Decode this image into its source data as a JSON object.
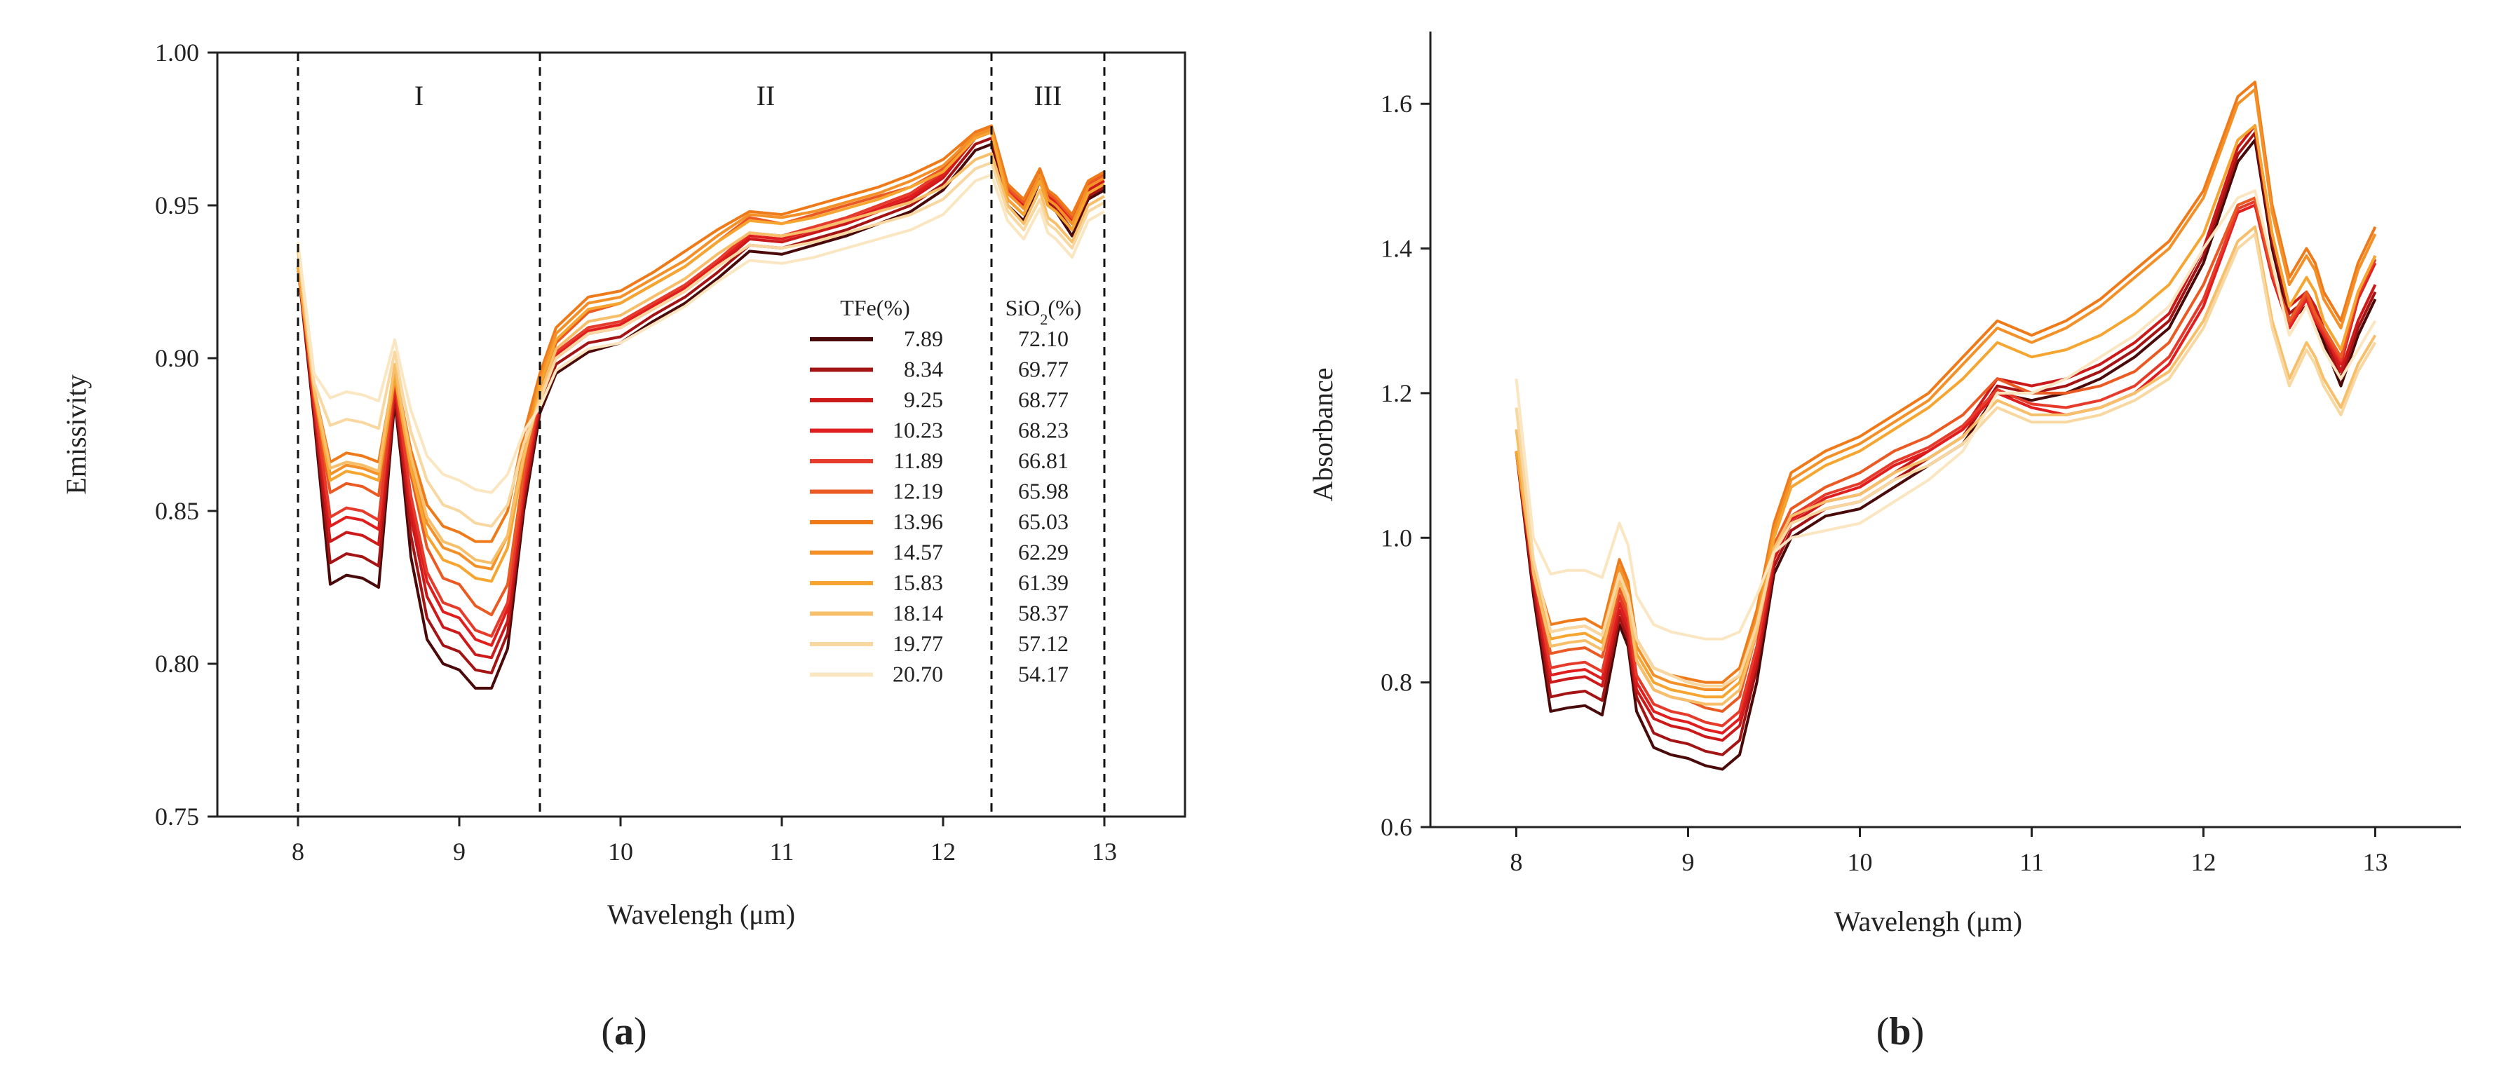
{
  "chart_data": [
    {
      "type": "line",
      "panel": "a",
      "xlabel": "Wavelengh (μm)",
      "ylabel": "Emissivity",
      "xlim": [
        7.5,
        13.5
      ],
      "ylim": [
        0.75,
        1.0
      ],
      "xticks": [
        8,
        9,
        10,
        11,
        12,
        13
      ],
      "yticks": [
        "0.75",
        "0.80",
        "0.85",
        "0.90",
        "0.95",
        "1.00"
      ],
      "grid": false,
      "regions": [
        {
          "label": "I",
          "from": 8.0,
          "to": 9.5
        },
        {
          "label": "II",
          "from": 9.5,
          "to": 12.3
        },
        {
          "label": "III",
          "from": 12.3,
          "to": 13.0
        }
      ],
      "x": [
        8.0,
        8.1,
        8.2,
        8.3,
        8.4,
        8.5,
        8.6,
        8.65,
        8.7,
        8.8,
        8.9,
        9.0,
        9.1,
        9.2,
        9.3,
        9.4,
        9.5,
        9.6,
        9.8,
        10.0,
        10.2,
        10.4,
        10.6,
        10.8,
        11.0,
        11.2,
        11.4,
        11.6,
        11.8,
        12.0,
        12.2,
        12.3,
        12.4,
        12.5,
        12.6,
        12.65,
        12.7,
        12.8,
        12.9,
        13.0
      ]
    },
    {
      "type": "line",
      "panel": "b",
      "xlabel": "Wavelengh (μm)",
      "ylabel": "Absorbance",
      "xlim": [
        7.5,
        13.5
      ],
      "ylim": [
        0.6,
        1.7
      ],
      "xticks": [
        8,
        9,
        10,
        11,
        12,
        13
      ],
      "yticks": [
        "0.6",
        "0.8",
        "1.0",
        "1.2",
        "1.4",
        "1.6"
      ],
      "grid": false,
      "x": [
        8.0,
        8.1,
        8.2,
        8.3,
        8.4,
        8.5,
        8.6,
        8.65,
        8.7,
        8.8,
        8.9,
        9.0,
        9.1,
        9.2,
        9.3,
        9.4,
        9.5,
        9.6,
        9.8,
        10.0,
        10.2,
        10.4,
        10.6,
        10.8,
        11.0,
        11.2,
        11.4,
        11.6,
        11.8,
        12.0,
        12.2,
        12.3,
        12.4,
        12.5,
        12.6,
        12.65,
        12.7,
        12.8,
        12.9,
        13.0
      ]
    }
  ],
  "legend": {
    "header_tfe": "TFe(%)",
    "header_sio2": "SiO2(%)",
    "entries": [
      {
        "tfe": "7.89",
        "sio2": "72.10",
        "color": "#4a0a0a"
      },
      {
        "tfe": "8.34",
        "sio2": "69.77",
        "color": "#a51414"
      },
      {
        "tfe": "9.25",
        "sio2": "68.77",
        "color": "#cc1a1a"
      },
      {
        "tfe": "10.23",
        "sio2": "68.23",
        "color": "#e01e1e"
      },
      {
        "tfe": "11.89",
        "sio2": "66.81",
        "color": "#e63b2a"
      },
      {
        "tfe": "12.19",
        "sio2": "65.98",
        "color": "#ea5a22"
      },
      {
        "tfe": "13.96",
        "sio2": "65.03",
        "color": "#ee7a1a"
      },
      {
        "tfe": "14.57",
        "sio2": "62.29",
        "color": "#f39028"
      },
      {
        "tfe": "15.83",
        "sio2": "61.39",
        "color": "#f5a530"
      },
      {
        "tfe": "18.14",
        "sio2": "58.37",
        "color": "#f7bf6a"
      },
      {
        "tfe": "19.77",
        "sio2": "57.12",
        "color": "#f8d7a0"
      },
      {
        "tfe": "20.70",
        "sio2": "54.17",
        "color": "#fbe6c2"
      }
    ]
  },
  "series_a": [
    [
      0.93,
      0.88,
      0.826,
      0.829,
      0.828,
      0.825,
      0.886,
      0.862,
      0.835,
      0.808,
      0.8,
      0.798,
      0.792,
      0.792,
      0.805,
      0.85,
      0.882,
      0.895,
      0.902,
      0.905,
      0.912,
      0.918,
      0.926,
      0.935,
      0.934,
      0.937,
      0.94,
      0.944,
      0.948,
      0.955,
      0.968,
      0.97,
      0.95,
      0.945,
      0.958,
      0.95,
      0.948,
      0.94,
      0.952,
      0.955
    ],
    [
      0.93,
      0.882,
      0.833,
      0.836,
      0.835,
      0.832,
      0.888,
      0.866,
      0.842,
      0.815,
      0.806,
      0.804,
      0.798,
      0.797,
      0.81,
      0.853,
      0.884,
      0.898,
      0.905,
      0.907,
      0.914,
      0.92,
      0.928,
      0.937,
      0.936,
      0.939,
      0.942,
      0.946,
      0.95,
      0.957,
      0.97,
      0.972,
      0.952,
      0.947,
      0.959,
      0.951,
      0.949,
      0.942,
      0.953,
      0.956
    ],
    [
      0.93,
      0.884,
      0.84,
      0.843,
      0.842,
      0.839,
      0.89,
      0.869,
      0.848,
      0.822,
      0.812,
      0.81,
      0.803,
      0.802,
      0.814,
      0.856,
      0.886,
      0.9,
      0.908,
      0.91,
      0.916,
      0.922,
      0.93,
      0.939,
      0.938,
      0.941,
      0.944,
      0.948,
      0.952,
      0.959,
      0.972,
      0.974,
      0.954,
      0.949,
      0.96,
      0.952,
      0.95,
      0.944,
      0.955,
      0.958
    ],
    [
      0.93,
      0.885,
      0.845,
      0.848,
      0.847,
      0.844,
      0.892,
      0.872,
      0.852,
      0.827,
      0.817,
      0.815,
      0.808,
      0.806,
      0.818,
      0.858,
      0.887,
      0.901,
      0.909,
      0.911,
      0.917,
      0.923,
      0.931,
      0.94,
      0.939,
      0.942,
      0.945,
      0.949,
      0.953,
      0.96,
      0.973,
      0.975,
      0.955,
      0.95,
      0.961,
      0.953,
      0.951,
      0.945,
      0.956,
      0.959
    ],
    [
      0.93,
      0.886,
      0.848,
      0.851,
      0.85,
      0.847,
      0.893,
      0.874,
      0.855,
      0.83,
      0.82,
      0.818,
      0.811,
      0.809,
      0.82,
      0.86,
      0.888,
      0.902,
      0.91,
      0.912,
      0.918,
      0.924,
      0.932,
      0.941,
      0.94,
      0.943,
      0.946,
      0.95,
      0.954,
      0.961,
      0.973,
      0.975,
      0.955,
      0.951,
      0.961,
      0.954,
      0.952,
      0.946,
      0.957,
      0.96
    ],
    [
      0.93,
      0.888,
      0.856,
      0.859,
      0.858,
      0.855,
      0.894,
      0.878,
      0.862,
      0.838,
      0.828,
      0.826,
      0.819,
      0.816,
      0.826,
      0.863,
      0.89,
      0.905,
      0.915,
      0.918,
      0.924,
      0.93,
      0.938,
      0.946,
      0.944,
      0.947,
      0.95,
      0.953,
      0.956,
      0.962,
      0.974,
      0.976,
      0.956,
      0.951,
      0.962,
      0.954,
      0.952,
      0.946,
      0.957,
      0.96
    ],
    [
      0.93,
      0.89,
      0.866,
      0.869,
      0.868,
      0.866,
      0.896,
      0.883,
      0.87,
      0.852,
      0.845,
      0.843,
      0.84,
      0.84,
      0.85,
      0.875,
      0.895,
      0.91,
      0.92,
      0.922,
      0.928,
      0.935,
      0.942,
      0.948,
      0.947,
      0.95,
      0.953,
      0.956,
      0.96,
      0.965,
      0.974,
      0.976,
      0.957,
      0.952,
      0.962,
      0.955,
      0.953,
      0.947,
      0.958,
      0.961
    ],
    [
      0.93,
      0.889,
      0.862,
      0.865,
      0.864,
      0.862,
      0.895,
      0.88,
      0.866,
      0.846,
      0.838,
      0.836,
      0.832,
      0.831,
      0.842,
      0.87,
      0.893,
      0.908,
      0.918,
      0.92,
      0.926,
      0.932,
      0.94,
      0.947,
      0.946,
      0.948,
      0.951,
      0.954,
      0.958,
      0.963,
      0.973,
      0.975,
      0.954,
      0.949,
      0.96,
      0.952,
      0.95,
      0.944,
      0.956,
      0.959
    ],
    [
      0.93,
      0.889,
      0.86,
      0.863,
      0.862,
      0.86,
      0.894,
      0.879,
      0.864,
      0.842,
      0.834,
      0.832,
      0.828,
      0.827,
      0.838,
      0.867,
      0.891,
      0.906,
      0.916,
      0.918,
      0.924,
      0.93,
      0.938,
      0.945,
      0.944,
      0.946,
      0.949,
      0.952,
      0.956,
      0.961,
      0.972,
      0.974,
      0.952,
      0.947,
      0.958,
      0.95,
      0.948,
      0.942,
      0.954,
      0.957
    ],
    [
      0.935,
      0.89,
      0.864,
      0.866,
      0.865,
      0.863,
      0.898,
      0.882,
      0.868,
      0.848,
      0.84,
      0.838,
      0.834,
      0.833,
      0.842,
      0.868,
      0.888,
      0.903,
      0.912,
      0.914,
      0.92,
      0.926,
      0.934,
      0.941,
      0.94,
      0.942,
      0.945,
      0.948,
      0.951,
      0.956,
      0.965,
      0.967,
      0.95,
      0.944,
      0.955,
      0.946,
      0.944,
      0.938,
      0.95,
      0.953
    ],
    [
      0.937,
      0.892,
      0.878,
      0.88,
      0.879,
      0.877,
      0.902,
      0.888,
      0.876,
      0.86,
      0.852,
      0.85,
      0.846,
      0.845,
      0.852,
      0.872,
      0.886,
      0.9,
      0.908,
      0.91,
      0.916,
      0.922,
      0.93,
      0.937,
      0.936,
      0.938,
      0.941,
      0.944,
      0.947,
      0.952,
      0.962,
      0.964,
      0.948,
      0.942,
      0.952,
      0.944,
      0.942,
      0.936,
      0.948,
      0.951
    ],
    [
      0.938,
      0.895,
      0.887,
      0.889,
      0.888,
      0.886,
      0.906,
      0.894,
      0.883,
      0.868,
      0.862,
      0.86,
      0.857,
      0.856,
      0.862,
      0.876,
      0.884,
      0.896,
      0.903,
      0.905,
      0.911,
      0.917,
      0.925,
      0.932,
      0.931,
      0.933,
      0.936,
      0.939,
      0.942,
      0.947,
      0.958,
      0.96,
      0.945,
      0.939,
      0.949,
      0.941,
      0.939,
      0.933,
      0.945,
      0.948
    ]
  ],
  "series_b": [
    [
      1.12,
      0.92,
      0.76,
      0.765,
      0.768,
      0.755,
      0.88,
      0.85,
      0.76,
      0.71,
      0.7,
      0.695,
      0.685,
      0.68,
      0.7,
      0.8,
      0.95,
      1.0,
      1.03,
      1.04,
      1.07,
      1.1,
      1.13,
      1.2,
      1.19,
      1.2,
      1.22,
      1.25,
      1.29,
      1.38,
      1.52,
      1.55,
      1.4,
      1.3,
      1.32,
      1.3,
      1.27,
      1.21,
      1.28,
      1.33
    ],
    [
      1.12,
      0.93,
      0.78,
      0.785,
      0.788,
      0.775,
      0.89,
      0.86,
      0.78,
      0.73,
      0.72,
      0.715,
      0.705,
      0.7,
      0.72,
      0.82,
      0.96,
      1.01,
      1.04,
      1.05,
      1.08,
      1.11,
      1.14,
      1.21,
      1.2,
      1.21,
      1.23,
      1.26,
      1.3,
      1.39,
      1.53,
      1.56,
      1.41,
      1.31,
      1.33,
      1.31,
      1.28,
      1.22,
      1.29,
      1.34
    ],
    [
      1.12,
      0.94,
      0.8,
      0.805,
      0.808,
      0.795,
      0.9,
      0.87,
      0.79,
      0.75,
      0.74,
      0.735,
      0.725,
      0.72,
      0.74,
      0.83,
      0.97,
      1.02,
      1.05,
      1.06,
      1.09,
      1.12,
      1.15,
      1.22,
      1.21,
      1.22,
      1.24,
      1.27,
      1.31,
      1.4,
      1.54,
      1.57,
      1.42,
      1.32,
      1.34,
      1.32,
      1.29,
      1.23,
      1.3,
      1.35
    ],
    [
      1.12,
      0.945,
      0.81,
      0.815,
      0.818,
      0.805,
      0.91,
      0.88,
      0.8,
      0.76,
      0.75,
      0.745,
      0.735,
      0.73,
      0.75,
      0.84,
      0.975,
      1.025,
      1.055,
      1.07,
      1.1,
      1.12,
      1.15,
      1.2,
      1.18,
      1.17,
      1.18,
      1.2,
      1.24,
      1.32,
      1.45,
      1.46,
      1.36,
      1.29,
      1.33,
      1.3,
      1.28,
      1.24,
      1.33,
      1.38
    ],
    [
      1.12,
      0.95,
      0.82,
      0.825,
      0.828,
      0.815,
      0.92,
      0.89,
      0.81,
      0.77,
      0.76,
      0.755,
      0.745,
      0.74,
      0.76,
      0.85,
      0.98,
      1.03,
      1.06,
      1.075,
      1.105,
      1.125,
      1.155,
      1.205,
      1.185,
      1.18,
      1.19,
      1.21,
      1.25,
      1.33,
      1.455,
      1.465,
      1.365,
      1.295,
      1.335,
      1.305,
      1.285,
      1.245,
      1.335,
      1.385
    ],
    [
      1.12,
      0.955,
      0.84,
      0.845,
      0.848,
      0.835,
      0.93,
      0.9,
      0.83,
      0.79,
      0.78,
      0.775,
      0.765,
      0.76,
      0.78,
      0.87,
      0.99,
      1.04,
      1.07,
      1.09,
      1.12,
      1.14,
      1.17,
      1.22,
      1.2,
      1.2,
      1.21,
      1.23,
      1.27,
      1.35,
      1.46,
      1.47,
      1.37,
      1.3,
      1.34,
      1.31,
      1.29,
      1.25,
      1.34,
      1.39
    ],
    [
      1.12,
      0.96,
      0.88,
      0.885,
      0.888,
      0.875,
      0.97,
      0.94,
      0.86,
      0.82,
      0.81,
      0.805,
      0.8,
      0.8,
      0.82,
      0.9,
      1.02,
      1.09,
      1.12,
      1.14,
      1.17,
      1.2,
      1.25,
      1.3,
      1.28,
      1.3,
      1.33,
      1.37,
      1.41,
      1.48,
      1.61,
      1.63,
      1.46,
      1.36,
      1.4,
      1.38,
      1.34,
      1.3,
      1.38,
      1.43
    ],
    [
      1.12,
      0.96,
      0.87,
      0.875,
      0.878,
      0.865,
      0.96,
      0.93,
      0.85,
      0.81,
      0.8,
      0.795,
      0.79,
      0.79,
      0.81,
      0.89,
      1.01,
      1.08,
      1.11,
      1.13,
      1.16,
      1.19,
      1.24,
      1.29,
      1.27,
      1.29,
      1.32,
      1.36,
      1.4,
      1.47,
      1.6,
      1.62,
      1.45,
      1.35,
      1.39,
      1.37,
      1.33,
      1.29,
      1.37,
      1.42
    ],
    [
      1.12,
      0.955,
      0.86,
      0.865,
      0.868,
      0.855,
      0.95,
      0.92,
      0.84,
      0.8,
      0.79,
      0.785,
      0.78,
      0.78,
      0.8,
      0.88,
      1.0,
      1.07,
      1.1,
      1.12,
      1.15,
      1.18,
      1.22,
      1.27,
      1.25,
      1.26,
      1.28,
      1.31,
      1.35,
      1.42,
      1.55,
      1.57,
      1.42,
      1.32,
      1.36,
      1.34,
      1.3,
      1.26,
      1.34,
      1.39
    ],
    [
      1.15,
      0.95,
      0.85,
      0.855,
      0.858,
      0.845,
      0.94,
      0.91,
      0.83,
      0.79,
      0.78,
      0.775,
      0.77,
      0.77,
      0.79,
      0.87,
      0.985,
      1.03,
      1.05,
      1.06,
      1.09,
      1.11,
      1.14,
      1.19,
      1.17,
      1.17,
      1.18,
      1.2,
      1.23,
      1.3,
      1.41,
      1.43,
      1.3,
      1.22,
      1.27,
      1.25,
      1.22,
      1.18,
      1.24,
      1.28
    ],
    [
      1.18,
      0.97,
      0.87,
      0.875,
      0.878,
      0.865,
      0.95,
      0.92,
      0.86,
      0.82,
      0.81,
      0.8,
      0.795,
      0.795,
      0.81,
      0.88,
      0.98,
      1.02,
      1.04,
      1.05,
      1.08,
      1.1,
      1.13,
      1.18,
      1.16,
      1.16,
      1.17,
      1.19,
      1.22,
      1.29,
      1.4,
      1.42,
      1.29,
      1.21,
      1.26,
      1.24,
      1.21,
      1.17,
      1.23,
      1.27
    ],
    [
      1.22,
      1.0,
      0.95,
      0.955,
      0.955,
      0.945,
      1.02,
      0.99,
      0.92,
      0.88,
      0.87,
      0.865,
      0.86,
      0.86,
      0.87,
      0.92,
      0.98,
      1.0,
      1.01,
      1.02,
      1.05,
      1.08,
      1.12,
      1.2,
      1.2,
      1.22,
      1.25,
      1.28,
      1.32,
      1.4,
      1.47,
      1.48,
      1.38,
      1.28,
      1.32,
      1.29,
      1.26,
      1.22,
      1.26,
      1.3
    ]
  ],
  "captions": {
    "a": "a",
    "b": "b"
  }
}
